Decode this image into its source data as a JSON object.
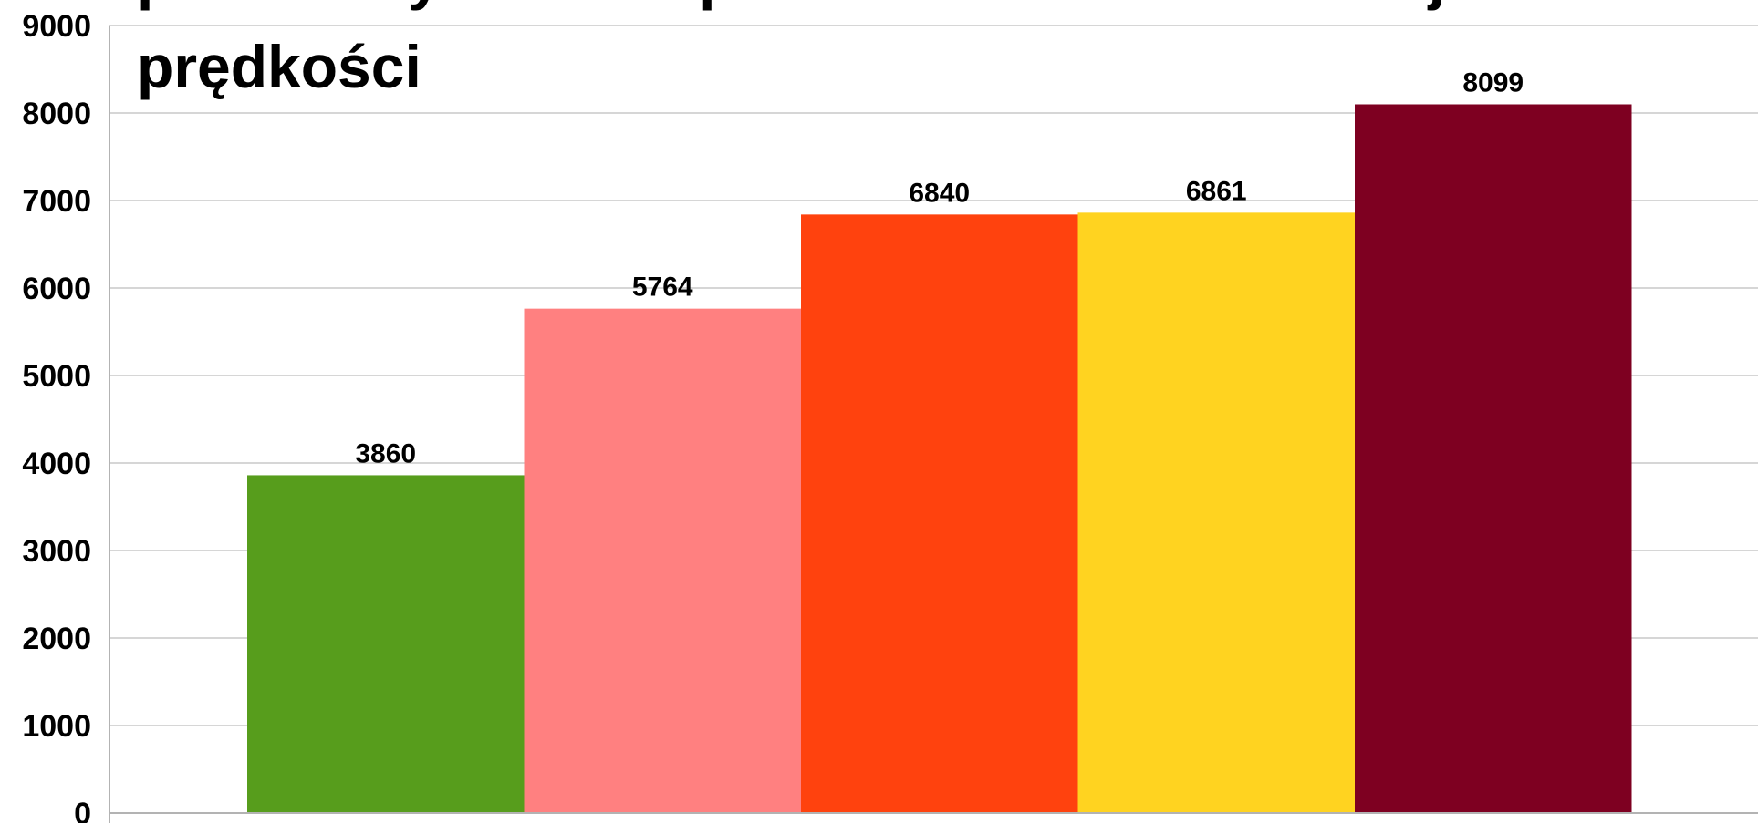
{
  "chart_data": {
    "type": "bar",
    "title_lines": [
      "przez I-szy WRD za przekroczenie dozwolonej",
      "prędkości"
    ],
    "xlabel": "",
    "ylabel": "",
    "ylim": [
      0,
      9000
    ],
    "yticks": [
      0,
      1000,
      2000,
      3000,
      4000,
      5000,
      6000,
      7000,
      8000,
      9000
    ],
    "grid": true,
    "legend": "none",
    "values": [
      3860,
      5764,
      6840,
      6861,
      8099
    ],
    "colors": [
      "#579d1c",
      "#ff8080",
      "#ff420e",
      "#ffd320",
      "#7e0021"
    ]
  }
}
